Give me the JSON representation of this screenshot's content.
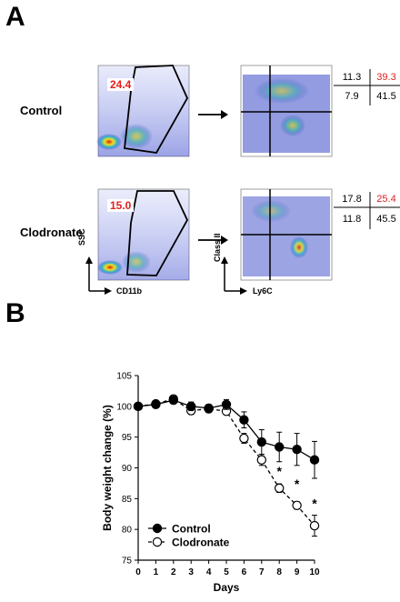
{
  "panel_a": {
    "letter": "A",
    "rows": [
      {
        "label": "Control",
        "gate_pct": "24.4",
        "quadrants": {
          "ul": "11.3",
          "ur": "39.3",
          "ll": "7.9",
          "lr": "41.5"
        }
      },
      {
        "label": "Clodronate",
        "gate_pct": "15.0",
        "quadrants": {
          "ul": "17.8",
          "ur": "25.4",
          "ll": "11.8",
          "lr": "45.5"
        }
      }
    ],
    "axes": {
      "left_y": "SSC",
      "left_x": "CD11b",
      "right_y": "Class II",
      "right_x": "Ly6C"
    },
    "colors": {
      "highlight": "#e02020",
      "density_low": "#3030c0",
      "density_high": "#e03020"
    }
  },
  "panel_b": {
    "letter": "B",
    "chart_data": {
      "type": "line",
      "xlabel": "Days",
      "ylabel": "Body weight change (%)",
      "xlim": [
        0,
        10
      ],
      "ylim": [
        75,
        105
      ],
      "x_ticks": [
        0,
        1,
        2,
        3,
        4,
        5,
        6,
        7,
        8,
        9,
        10
      ],
      "y_ticks": [
        75,
        80,
        85,
        90,
        95,
        100,
        105
      ],
      "legend_position": "bottom-left",
      "series": [
        {
          "name": "Control",
          "marker": "filled-circle",
          "line": "solid",
          "x": [
            0,
            1,
            2,
            3,
            4,
            5,
            6,
            7,
            8,
            9,
            10
          ],
          "y": [
            100,
            100.3,
            101,
            100,
            99.7,
            100.3,
            97.8,
            94.2,
            93.4,
            93,
            91.3
          ],
          "err": [
            0.5,
            0.5,
            0.6,
            0.7,
            0.6,
            0.8,
            1.3,
            2,
            2.4,
            2.6,
            3
          ]
        },
        {
          "name": "Clodronate",
          "marker": "open-circle",
          "line": "dashed",
          "x": [
            0,
            1,
            2,
            3,
            4,
            5,
            6,
            7,
            8,
            9,
            10
          ],
          "y": [
            100,
            100.4,
            101.2,
            99.3,
            99.6,
            99.2,
            94.8,
            91.3,
            86.7,
            83.9,
            80.6
          ],
          "err": [
            0.4,
            0.5,
            0.5,
            0.6,
            0.6,
            0.6,
            0.8,
            0.9,
            0.7,
            0.6,
            1.7
          ]
        }
      ],
      "significance": [
        {
          "x": 8,
          "y": 89.5,
          "label": "*"
        },
        {
          "x": 9,
          "y": 87.4,
          "label": "*"
        },
        {
          "x": 10,
          "y": 84.2,
          "label": "*"
        }
      ]
    }
  }
}
